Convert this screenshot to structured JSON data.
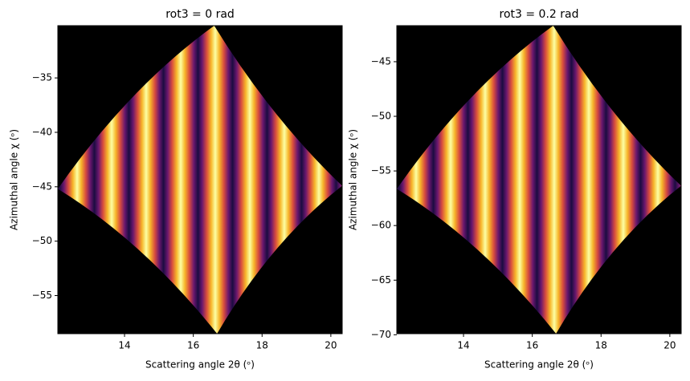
{
  "chart_data": [
    {
      "type": "image",
      "title": "rot3 = 0 rad",
      "xlabel": "Scattering angle 2θ (ᵒ)",
      "ylabel": "Azimuthal angle χ (ᵒ)",
      "xlim": [
        12.06,
        20.33
      ],
      "ylim": [
        -58.5,
        -30.2
      ],
      "xticks": [
        14,
        16,
        18,
        20
      ],
      "yticks": [
        {
          "value": -55,
          "label": "−55"
        },
        {
          "value": -50,
          "label": "−50"
        },
        {
          "value": -45,
          "label": "−45"
        },
        {
          "value": -40,
          "label": "−40"
        },
        {
          "value": -35,
          "label": "−35"
        }
      ]
    },
    {
      "type": "image",
      "title": "rot3 = 0.2 rad",
      "xlabel": "Scattering angle 2θ (ᵒ)",
      "ylabel": "Azimuthal angle χ (ᵒ)",
      "xlim": [
        12.06,
        20.33
      ],
      "ylim": [
        -69.9,
        -41.7
      ],
      "xticks": [
        14,
        16,
        18,
        20
      ],
      "yticks": [
        {
          "value": -70,
          "label": "−70"
        },
        {
          "value": -65,
          "label": "−65"
        },
        {
          "value": -60,
          "label": "−60"
        },
        {
          "value": -55,
          "label": "−55"
        },
        {
          "value": -50,
          "label": "−50"
        },
        {
          "value": -45,
          "label": "−45"
        }
      ]
    }
  ]
}
